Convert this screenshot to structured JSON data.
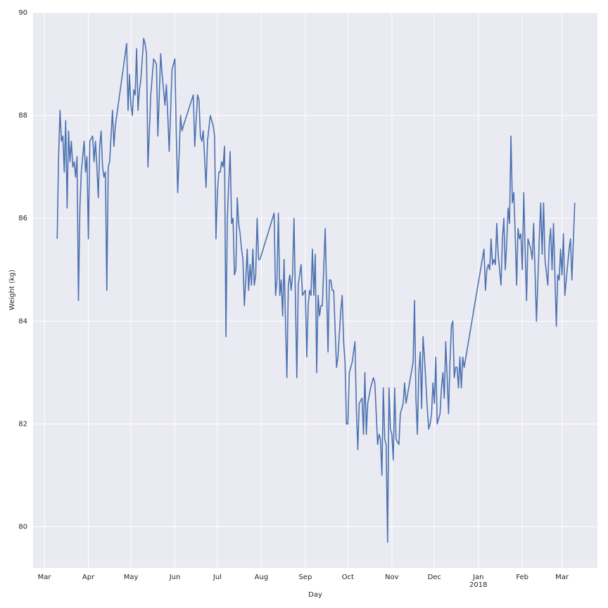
{
  "chart_data": {
    "type": "line",
    "xlabel": "Day",
    "ylabel": "Weight (kg)",
    "color": "#4c72b0",
    "grid": true,
    "xlim": [
      "2017-02-21",
      "2018-03-26"
    ],
    "ylim": [
      79.2,
      90
    ],
    "yticks": [
      80,
      82,
      84,
      86,
      88,
      90
    ],
    "xticks": [
      {
        "value": "2017-03-01",
        "label": "Mar"
      },
      {
        "value": "2017-04-01",
        "label": "Apr"
      },
      {
        "value": "2017-05-01",
        "label": "May"
      },
      {
        "value": "2017-06-01",
        "label": "Jun"
      },
      {
        "value": "2017-07-01",
        "label": "Jul"
      },
      {
        "value": "2017-08-01",
        "label": "Aug"
      },
      {
        "value": "2017-09-01",
        "label": "Sep"
      },
      {
        "value": "2017-10-01",
        "label": "Oct"
      },
      {
        "value": "2017-11-01",
        "label": "Nov"
      },
      {
        "value": "2017-12-01",
        "label": "Dec"
      },
      {
        "value": "2018-01-01",
        "label": "Jan",
        "sublabel": "2018"
      },
      {
        "value": "2018-02-01",
        "label": "Feb"
      },
      {
        "value": "2018-03-01",
        "label": "Mar"
      }
    ],
    "x": [
      "2017-03-10",
      "2017-03-11",
      "2017-03-12",
      "2017-03-13",
      "2017-03-14",
      "2017-03-15",
      "2017-03-16",
      "2017-03-17",
      "2017-03-18",
      "2017-03-19",
      "2017-03-20",
      "2017-03-21",
      "2017-03-22",
      "2017-03-23",
      "2017-03-24",
      "2017-03-25",
      "2017-03-26",
      "2017-03-27",
      "2017-03-28",
      "2017-03-29",
      "2017-03-30",
      "2017-03-31",
      "2017-04-01",
      "2017-04-02",
      "2017-04-04",
      "2017-04-05",
      "2017-04-06",
      "2017-04-07",
      "2017-04-08",
      "2017-04-09",
      "2017-04-10",
      "2017-04-11",
      "2017-04-12",
      "2017-04-13",
      "2017-04-14",
      "2017-04-15",
      "2017-04-16",
      "2017-04-18",
      "2017-04-19",
      "2017-04-20",
      "2017-04-28",
      "2017-04-29",
      "2017-04-30",
      "2017-05-01",
      "2017-05-02",
      "2017-05-03",
      "2017-05-04",
      "2017-05-05",
      "2017-05-06",
      "2017-05-07",
      "2017-05-08",
      "2017-05-10",
      "2017-05-11",
      "2017-05-12",
      "2017-05-13",
      "2017-05-15",
      "2017-05-17",
      "2017-05-19",
      "2017-05-20",
      "2017-05-22",
      "2017-05-23",
      "2017-05-24",
      "2017-05-25",
      "2017-05-26",
      "2017-05-27",
      "2017-05-28",
      "2017-05-30",
      "2017-06-01",
      "2017-06-02",
      "2017-06-03",
      "2017-06-05",
      "2017-06-06",
      "2017-06-07",
      "2017-06-14",
      "2017-06-15",
      "2017-06-17",
      "2017-06-18",
      "2017-06-19",
      "2017-06-20",
      "2017-06-21",
      "2017-06-23",
      "2017-06-24",
      "2017-06-26",
      "2017-06-28",
      "2017-06-29",
      "2017-06-30",
      "2017-07-01",
      "2017-07-02",
      "2017-07-03",
      "2017-07-04",
      "2017-07-05",
      "2017-07-06",
      "2017-07-07",
      "2017-07-08",
      "2017-07-09",
      "2017-07-10",
      "2017-07-11",
      "2017-07-12",
      "2017-07-13",
      "2017-07-14",
      "2017-07-15",
      "2017-07-16",
      "2017-07-17",
      "2017-07-18",
      "2017-07-19",
      "2017-07-20",
      "2017-07-21",
      "2017-07-22",
      "2017-07-23",
      "2017-07-24",
      "2017-07-25",
      "2017-07-26",
      "2017-07-27",
      "2017-07-28",
      "2017-07-29",
      "2017-07-30",
      "2017-07-31",
      "2017-08-10",
      "2017-08-11",
      "2017-08-12",
      "2017-08-13",
      "2017-08-14",
      "2017-08-15",
      "2017-08-16",
      "2017-08-17",
      "2017-08-18",
      "2017-08-19",
      "2017-08-20",
      "2017-08-21",
      "2017-08-22",
      "2017-08-23",
      "2017-08-24",
      "2017-08-26",
      "2017-08-27",
      "2017-08-28",
      "2017-08-29",
      "2017-08-30",
      "2017-09-01",
      "2017-09-02",
      "2017-09-03",
      "2017-09-04",
      "2017-09-05",
      "2017-09-06",
      "2017-09-07",
      "2017-09-08",
      "2017-09-09",
      "2017-09-10",
      "2017-09-11",
      "2017-09-12",
      "2017-09-13",
      "2017-09-15",
      "2017-09-16",
      "2017-09-17",
      "2017-09-18",
      "2017-09-19",
      "2017-09-20",
      "2017-09-21",
      "2017-09-23",
      "2017-09-24",
      "2017-09-26",
      "2017-09-27",
      "2017-09-28",
      "2017-09-29",
      "2017-09-30",
      "2017-10-01",
      "2017-10-02",
      "2017-10-04",
      "2017-10-06",
      "2017-10-07",
      "2017-10-08",
      "2017-10-09",
      "2017-10-11",
      "2017-10-12",
      "2017-10-13",
      "2017-10-14",
      "2017-10-15",
      "2017-10-17",
      "2017-10-19",
      "2017-10-20",
      "2017-10-22",
      "2017-10-23",
      "2017-10-24",
      "2017-10-25",
      "2017-10-26",
      "2017-10-27",
      "2017-10-28",
      "2017-10-29",
      "2017-10-30",
      "2017-10-31",
      "2017-11-01",
      "2017-11-02",
      "2017-11-03",
      "2017-11-04",
      "2017-11-06",
      "2017-11-07",
      "2017-11-08",
      "2017-11-09",
      "2017-11-10",
      "2017-11-11",
      "2017-11-16",
      "2017-11-17",
      "2017-11-18",
      "2017-11-19",
      "2017-11-20",
      "2017-11-21",
      "2017-11-22",
      "2017-11-23",
      "2017-11-24",
      "2017-11-26",
      "2017-11-27",
      "2017-11-28",
      "2017-11-29",
      "2017-11-30",
      "2017-12-01",
      "2017-12-02",
      "2017-12-03",
      "2017-12-05",
      "2017-12-06",
      "2017-12-07",
      "2017-12-08",
      "2017-12-09",
      "2017-12-10",
      "2017-12-11",
      "2017-12-12",
      "2017-12-13",
      "2017-12-14",
      "2017-12-15",
      "2017-12-16",
      "2017-12-17",
      "2017-12-18",
      "2017-12-19",
      "2017-12-20",
      "2017-12-21",
      "2017-12-22",
      "2018-01-05",
      "2018-01-06",
      "2018-01-07",
      "2018-01-08",
      "2018-01-09",
      "2018-01-10",
      "2018-01-11",
      "2018-01-12",
      "2018-01-13",
      "2018-01-14",
      "2018-01-15",
      "2018-01-17",
      "2018-01-18",
      "2018-01-19",
      "2018-01-20",
      "2018-01-21",
      "2018-01-22",
      "2018-01-23",
      "2018-01-24",
      "2018-01-25",
      "2018-01-26",
      "2018-01-27",
      "2018-01-28",
      "2018-01-29",
      "2018-01-30",
      "2018-01-31",
      "2018-02-01",
      "2018-02-02",
      "2018-02-03",
      "2018-02-04",
      "2018-02-05",
      "2018-02-06",
      "2018-02-07",
      "2018-02-08",
      "2018-02-09",
      "2018-02-11",
      "2018-02-13",
      "2018-02-14",
      "2018-02-15",
      "2018-02-16",
      "2018-02-17",
      "2018-02-19",
      "2018-02-20",
      "2018-02-21",
      "2018-02-22",
      "2018-02-23",
      "2018-02-25",
      "2018-02-26",
      "2018-02-27",
      "2018-02-28",
      "2018-03-01",
      "2018-03-02",
      "2018-03-03",
      "2018-03-05",
      "2018-03-06",
      "2018-03-07",
      "2018-03-08",
      "2018-03-10"
    ],
    "values": [
      85.6,
      87.2,
      88.1,
      87.5,
      87.6,
      86.9,
      87.9,
      86.2,
      87.7,
      87.1,
      87.5,
      87.0,
      87.1,
      86.8,
      87.2,
      84.4,
      86.2,
      86.9,
      87.2,
      87.5,
      86.9,
      87.2,
      85.6,
      87.5,
      87.6,
      87.1,
      87.5,
      87.0,
      86.4,
      87.4,
      87.7,
      87.0,
      86.8,
      86.9,
      84.6,
      87.0,
      87.1,
      88.1,
      87.4,
      87.8,
      89.4,
      88.1,
      88.8,
      88.2,
      88.0,
      88.5,
      88.4,
      89.3,
      88.1,
      88.5,
      88.7,
      89.5,
      89.4,
      89.2,
      87.0,
      88.4,
      89.1,
      89.0,
      87.6,
      89.2,
      88.8,
      88.5,
      88.2,
      88.6,
      88.0,
      87.3,
      88.9,
      89.1,
      87.6,
      86.5,
      88.0,
      87.7,
      87.8,
      88.4,
      87.4,
      88.4,
      88.3,
      87.6,
      87.5,
      87.7,
      86.6,
      87.5,
      88.0,
      87.8,
      87.6,
      85.6,
      86.5,
      86.9,
      86.9,
      87.1,
      87.0,
      87.4,
      83.7,
      86.0,
      86.7,
      87.3,
      85.9,
      86.0,
      84.9,
      85.0,
      86.4,
      85.9,
      85.7,
      85.4,
      85.2,
      84.3,
      84.8,
      85.4,
      84.6,
      85.1,
      84.7,
      85.4,
      84.7,
      84.9,
      86.0,
      85.2,
      85.2,
      86.1,
      84.5,
      84.8,
      86.1,
      84.5,
      84.8,
      84.1,
      85.2,
      84.0,
      82.9,
      84.7,
      84.9,
      84.6,
      84.9,
      86.0,
      82.9,
      84.7,
      84.9,
      85.1,
      84.5,
      84.6,
      83.3,
      84.3,
      84.6,
      84.5,
      85.4,
      84.5,
      85.3,
      83.0,
      84.5,
      84.1,
      84.3,
      84.3,
      85.8,
      84.6,
      83.4,
      84.8,
      84.8,
      84.6,
      84.6,
      83.1,
      83.3,
      84.2,
      84.5,
      83.6,
      83.2,
      82.0,
      82.0,
      83.0,
      83.2,
      83.6,
      82.3,
      81.5,
      82.4,
      82.5,
      81.8,
      83.0,
      81.8,
      82.4,
      82.7,
      82.9,
      82.8,
      81.6,
      81.8,
      81.7,
      81.0,
      82.7,
      81.7,
      81.6,
      79.7,
      82.7,
      81.9,
      81.8,
      81.3,
      82.7,
      81.7,
      81.6,
      82.2,
      82.3,
      82.4,
      82.8,
      82.4,
      83.2,
      84.4,
      82.5,
      81.8,
      83.0,
      83.4,
      82.3,
      83.7,
      83.3,
      82.3,
      81.9,
      82.0,
      82.2,
      82.8,
      82.4,
      83.3,
      82.0,
      82.2,
      82.7,
      83.0,
      82.5,
      83.6,
      82.9,
      82.2,
      83.2,
      83.9,
      84.0,
      82.9,
      83.1,
      83.1,
      82.7,
      83.3,
      82.7,
      83.3,
      83.1,
      85.4,
      84.6,
      85.0,
      85.1,
      85.0,
      85.6,
      85.1,
      85.2,
      85.1,
      85.9,
      85.3,
      84.7,
      85.6,
      86.0,
      85.0,
      85.5,
      86.2,
      85.9,
      87.6,
      86.3,
      86.5,
      85.7,
      84.7,
      85.8,
      85.6,
      85.7,
      85.0,
      86.5,
      85.4,
      84.4,
      85.6,
      85.5,
      85.4,
      85.2,
      85.9,
      84.0,
      85.6,
      86.3,
      85.3,
      86.3,
      85.2,
      84.7,
      85.5,
      85.8,
      85.0,
      85.9,
      83.9,
      84.9,
      84.8,
      85.4,
      84.9,
      85.7,
      84.5,
      85.1,
      85.4,
      85.6,
      84.8,
      86.3
    ]
  }
}
